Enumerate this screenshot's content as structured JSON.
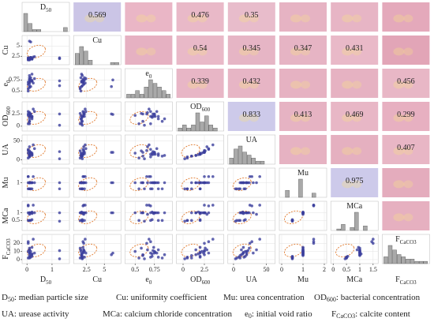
{
  "chart_data": {
    "type": "scatter_matrix",
    "point_color": "#3b3f9c",
    "hist_color": "#a9a9a9",
    "ellipse_color": "#e07a2e",
    "variables": [
      {
        "base": "D",
        "sub": "50",
        "lim": [
          -0.1,
          1.6
        ],
        "xticks": [
          0,
          1
        ],
        "yticks": [],
        "hist": [
          9,
          4,
          1,
          1,
          0,
          0,
          0,
          0,
          0,
          2
        ],
        "samples": [
          0.05,
          0.1,
          0.1,
          0.15,
          0.2,
          0.1,
          0.05,
          0.3,
          0.1,
          0.2,
          0.15,
          0.1,
          0.05,
          0.25,
          0.1,
          0.2,
          1.3,
          1.3,
          0.1,
          0.15,
          0.05,
          0.1,
          0.2,
          0.1
        ]
      },
      {
        "base": "Cu",
        "lim": [
          1,
          7
        ],
        "xticks": [
          2.5,
          5
        ],
        "yticks": [
          2.5,
          5
        ],
        "hist": [
          5,
          8,
          6,
          2,
          0,
          0,
          0,
          0,
          1,
          1
        ],
        "samples": [
          1.6,
          1.8,
          2.0,
          2.2,
          1.9,
          1.7,
          2.1,
          2.4,
          1.8,
          2.0,
          6.0,
          1.9,
          1.7,
          2.3,
          2.0,
          1.8,
          2.1,
          1.9,
          1.6,
          2.2,
          2.0,
          6.2,
          1.8,
          2.1
        ]
      },
      {
        "base": "e",
        "sub": "0",
        "lim": [
          0.4,
          0.95
        ],
        "xticks": [
          0.5,
          0.75
        ],
        "yticks": [
          0.5,
          0.75
        ],
        "hist": [
          1,
          1,
          2,
          1,
          3,
          5,
          4,
          3,
          2,
          1
        ],
        "samples": [
          0.55,
          0.6,
          0.7,
          0.75,
          0.72,
          0.8,
          0.65,
          0.78,
          0.7,
          0.74,
          0.6,
          0.85,
          0.5,
          0.68,
          0.76,
          0.72,
          0.73,
          0.62,
          0.58,
          0.8,
          0.7,
          0.75,
          0.88,
          0.66
        ]
      },
      {
        "base": "OD",
        "sub": "600",
        "lim": [
          -0.5,
          4.5
        ],
        "xticks": [
          0,
          2.5
        ],
        "yticks": [
          0,
          2.5
        ],
        "hist": [
          1,
          2,
          1,
          2,
          6,
          3,
          5,
          2,
          1,
          0
        ],
        "samples": [
          0.5,
          1.0,
          2.0,
          2.5,
          2.0,
          1.5,
          2.5,
          3.0,
          0.5,
          2.0,
          2.5,
          1.0,
          2.2,
          3.5,
          2.0,
          1.8,
          2.5,
          0.2,
          2.6,
          2.0,
          3.0,
          2.4,
          1.5,
          2.8
        ]
      },
      {
        "base": "UA",
        "lim": [
          -5,
          60
        ],
        "xticks": [
          0,
          50
        ],
        "yticks": [
          0,
          50
        ],
        "hist": [
          2,
          5,
          6,
          4,
          3,
          2,
          1,
          1,
          0,
          0
        ],
        "samples": [
          5,
          10,
          15,
          20,
          18,
          12,
          25,
          30,
          8,
          15,
          20,
          10,
          18,
          40,
          15,
          14,
          22,
          3,
          24,
          16,
          28,
          20,
          12,
          35
        ]
      },
      {
        "base": "Mu",
        "lim": [
          0,
          2
        ],
        "xticks": [
          0,
          1,
          2
        ],
        "yticks": [
          1
        ],
        "hist": [
          0,
          5,
          0,
          0,
          13,
          0,
          0,
          3,
          0,
          0
        ],
        "samples": [
          0.5,
          1.0,
          1.0,
          1.0,
          0.5,
          1.0,
          1.5,
          1.0,
          0.5,
          1.0,
          1.0,
          0.5,
          1.0,
          1.5,
          1.0,
          1.0,
          1.0,
          0.5,
          1.0,
          0.5,
          1.5,
          1.0,
          1.0,
          1.0
        ]
      },
      {
        "base": "MCa",
        "lim": [
          0,
          1.6
        ],
        "xticks": [
          0,
          0.5,
          1,
          1.5
        ],
        "yticks": [
          0.5,
          1
        ],
        "hist": [
          0,
          1,
          4,
          0,
          2,
          12,
          0,
          3,
          0,
          0
        ],
        "samples": [
          0.5,
          1.0,
          1.0,
          1.0,
          0.55,
          1.0,
          1.5,
          1.0,
          0.5,
          0.95,
          1.0,
          0.5,
          1.0,
          1.5,
          1.0,
          1.05,
          1.0,
          0.45,
          1.0,
          0.5,
          1.45,
          1.0,
          1.0,
          0.9
        ]
      },
      {
        "base": "F",
        "sub": "CaCO3",
        "lim": [
          -2,
          28
        ],
        "xticks": [],
        "yticks": [
          0,
          10,
          20
        ],
        "hist": [
          3,
          8,
          6,
          4,
          3,
          2,
          2,
          1,
          1,
          1
        ],
        "samples": [
          2,
          5,
          8,
          10,
          4,
          12,
          20,
          8,
          3,
          15,
          6,
          2,
          10,
          25,
          9,
          7,
          11,
          1,
          14,
          3,
          22,
          8,
          6,
          12
        ]
      }
    ],
    "upper": [
      [
        {
          "color": "#cbc5e6",
          "value": 0.569
        },
        {
          "color": "#eab6c6"
        },
        {
          "color": "#e9b9c8",
          "value": 0.476
        },
        {
          "color": "#e8bccb",
          "value": 0.35
        },
        {
          "color": "#e6b3c3"
        },
        {
          "color": "#e7b5c5"
        },
        {
          "color": "#e4a9bb"
        }
      ],
      [
        {
          "color": "#e6b1c2"
        },
        {
          "color": "#e9b9c8",
          "value": 0.54
        },
        {
          "color": "#e6b5c5",
          "value": 0.345
        },
        {
          "color": "#e6b4c4",
          "value": 0.347
        },
        {
          "color": "#e9b9c8",
          "value": 0.431
        },
        {
          "color": "#e2a5b7"
        }
      ],
      [
        {
          "color": "#e8b6c6",
          "value": 0.339
        },
        {
          "color": "#e7b5c5",
          "value": 0.432
        },
        {
          "color": "#e6b2c2"
        },
        {
          "color": "#e6b2c2"
        },
        {
          "color": "#e8b7c6",
          "value": 0.456
        }
      ],
      [
        {
          "color": "#cdcaea",
          "value": 0.833
        },
        {
          "color": "#e6b3c3",
          "value": 0.413
        },
        {
          "color": "#e8b7c6",
          "value": 0.469
        },
        {
          "color": "#e7b0c1",
          "value": 0.299
        }
      ],
      [
        {
          "color": "#e6b2c2"
        },
        {
          "color": "#e5b0c0"
        },
        {
          "color": "#e8b6c5",
          "value": 0.407
        }
      ],
      [
        {
          "color": "#cdcaea",
          "value": 0.975
        },
        {
          "color": "#e4acbd"
        }
      ],
      [
        {
          "color": "#e6b0c0"
        }
      ]
    ],
    "legend": [
      [
        {
          "base": "D",
          "sub": "50",
          "text": ": median particle size"
        },
        {
          "base": "Cu",
          "text": ": uniformity coefficient"
        },
        {
          "base": "Mu",
          "text": ": urea concentration"
        },
        {
          "base": "OD",
          "sub": "600",
          "text": ": bacterial concentration"
        }
      ],
      [
        {
          "base": "UA",
          "text": ": urease activity"
        },
        {
          "base": "MCa",
          "text": ": calcium chloride concentration"
        },
        {
          "base": "e",
          "sub": "0",
          "text": ": initial void ratio"
        },
        {
          "base": "F",
          "sub": "CaCO3",
          "text": ": calcite content"
        }
      ]
    ]
  }
}
